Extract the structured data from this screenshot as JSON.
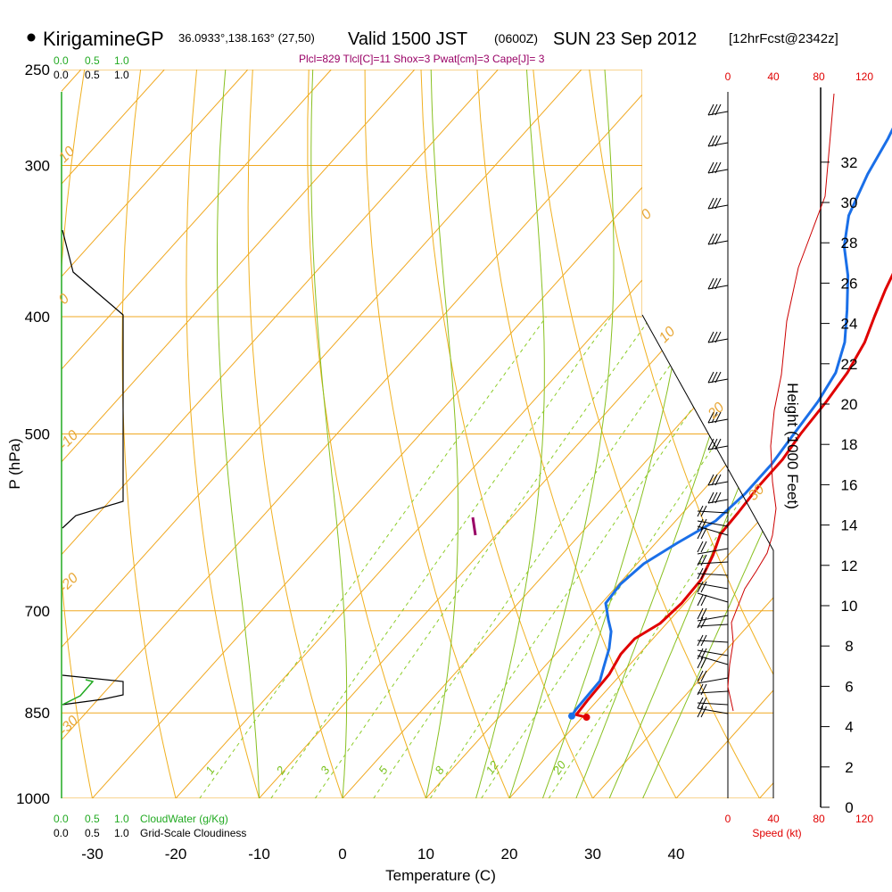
{
  "header": {
    "station": "KirigamineGP",
    "coords": "36.0933°,138.163° (27,50)",
    "valid": "Valid 1500 JST",
    "utc": "(0600Z)",
    "date": "SUN 23 Sep 2012",
    "forecast": "[12hrFcst@2342z]"
  },
  "indices_line": "Plcl=829 Tlcl[C]=11 Shox=3 Pwat[cm]=3 Cape[J]= 3",
  "axes": {
    "y_label": "P (hPa)",
    "x_label": "Temperature (C)",
    "height_label": "Height (1000 Feet)",
    "speed_label": "Speed (kt)",
    "cloudwater_label": "CloudWater (g/Kg)",
    "cloudiness_label": "Grid-Scale Cloudiness",
    "pressure_ticks": [
      "250",
      "300",
      "400",
      "500",
      "700",
      "850",
      "1000"
    ],
    "temperature_ticks": [
      "-30",
      "-20",
      "-10",
      "0",
      "10",
      "20",
      "30",
      "40"
    ],
    "height_ticks": [
      "0",
      "2",
      "4",
      "6",
      "8",
      "10",
      "12",
      "14",
      "16",
      "18",
      "20",
      "22",
      "24",
      "26",
      "28",
      "30",
      "32"
    ],
    "speed_ticks": [
      "0",
      "40",
      "80",
      "120"
    ],
    "fraction_ticks": [
      "0.0",
      "0.5",
      "1.0"
    ]
  },
  "isotherm_labels": [
    "10",
    "0",
    "-10",
    "-20",
    "-30",
    "0",
    "10",
    "20",
    "30"
  ],
  "mixing_ratio_labels": [
    "1",
    "2",
    "3",
    "5",
    "8",
    "12",
    "20"
  ],
  "colors": {
    "temperature": "#e00000",
    "dewpoint": "#1a6fe8",
    "isobar_isotherm": "#f0a820",
    "dry_adiabat": "#f0b020",
    "moist_adiabat": "#88c020",
    "mixing_ratio": "#8ccc28",
    "cloud_water": "#22aa22",
    "parcel": "#990066"
  },
  "chart_data": {
    "type": "line",
    "title": "KirigamineGP Valid 1500 JST (0600Z) SUN 23 Sep 2012",
    "xlabel": "Temperature (C)",
    "ylabel": "P (hPa)",
    "y_scale": "log",
    "xlim": [
      -35,
      46
    ],
    "ylim": [
      1000,
      250
    ],
    "grid": true,
    "series": [
      {
        "name": "temperature",
        "points": [
          [
            20.5,
            857
          ],
          [
            19,
            853
          ],
          [
            18.8,
            830
          ],
          [
            18.6,
            790
          ],
          [
            17.8,
            760
          ],
          [
            17.8,
            738
          ],
          [
            19.2,
            717
          ],
          [
            19.6,
            690
          ],
          [
            19.4,
            660
          ],
          [
            18.2,
            630
          ],
          [
            16.8,
            605
          ],
          [
            16.6,
            580
          ],
          [
            16.2,
            550
          ],
          [
            16.2,
            525
          ],
          [
            15.6,
            500
          ],
          [
            15.2,
            470
          ],
          [
            14.6,
            445
          ],
          [
            13.4,
            420
          ],
          [
            11.8,
            400
          ],
          [
            10.2,
            380
          ],
          [
            8.4,
            355
          ],
          [
            7.0,
            335
          ],
          [
            5.2,
            310
          ],
          [
            3.8,
            290
          ],
          [
            2.6,
            272
          ]
        ]
      },
      {
        "name": "dewpoint",
        "points": [
          [
            18.6,
            855
          ],
          [
            18.4,
            845
          ],
          [
            18.2,
            800
          ],
          [
            17.2,
            780
          ],
          [
            15.8,
            752
          ],
          [
            14.2,
            728
          ],
          [
            12.6,
            712
          ],
          [
            10.5,
            690
          ],
          [
            10.2,
            665
          ],
          [
            10.8,
            640
          ],
          [
            12.6,
            615
          ],
          [
            14.8,
            590
          ],
          [
            15.4,
            560
          ],
          [
            15.4,
            530
          ],
          [
            14.8,
            500
          ],
          [
            14.2,
            470
          ],
          [
            13.2,
            445
          ],
          [
            11.0,
            420
          ],
          [
            7.8,
            395
          ],
          [
            4.2,
            370
          ],
          [
            0.6,
            350
          ],
          [
            -2.2,
            330
          ],
          [
            -4.4,
            305
          ],
          [
            -5.8,
            285
          ],
          [
            -7.2,
            270
          ]
        ]
      }
    ]
  }
}
